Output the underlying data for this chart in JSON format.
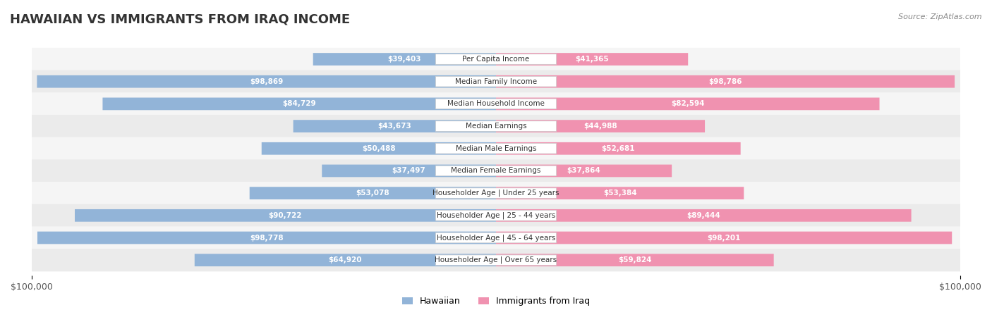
{
  "title": "HAWAIIAN VS IMMIGRANTS FROM IRAQ INCOME",
  "source": "Source: ZipAtlas.com",
  "categories": [
    "Per Capita Income",
    "Median Family Income",
    "Median Household Income",
    "Median Earnings",
    "Median Male Earnings",
    "Median Female Earnings",
    "Householder Age | Under 25 years",
    "Householder Age | 25 - 44 years",
    "Householder Age | 45 - 64 years",
    "Householder Age | Over 65 years"
  ],
  "hawaiian": [
    39403,
    98869,
    84729,
    43673,
    50488,
    37497,
    53078,
    90722,
    98778,
    64920
  ],
  "iraq": [
    41365,
    98786,
    82594,
    44988,
    52681,
    37864,
    53384,
    89444,
    98201,
    59824
  ],
  "hawaiian_labels": [
    "$39,403",
    "$98,869",
    "$84,729",
    "$43,673",
    "$50,488",
    "$37,497",
    "$53,078",
    "$90,722",
    "$98,778",
    "$64,920"
  ],
  "iraq_labels": [
    "$41,365",
    "$98,786",
    "$82,594",
    "$44,988",
    "$52,681",
    "$37,864",
    "$53,384",
    "$89,444",
    "$98,201",
    "$59,824"
  ],
  "max_value": 100000,
  "hawaiian_color": "#92b4d8",
  "iraq_color": "#f092b0",
  "hawaiian_dark_color": "#6090c0",
  "iraq_dark_color": "#e06090",
  "bar_bg_color": "#e8e8e8",
  "row_bg_even": "#f5f5f5",
  "row_bg_odd": "#ebebeb",
  "label_bg_color": "#f0f0f0",
  "label_text_color": "#555555",
  "title_color": "#333333",
  "legend_hawaiian_color": "#92b4d8",
  "legend_iraq_color": "#f092b0"
}
